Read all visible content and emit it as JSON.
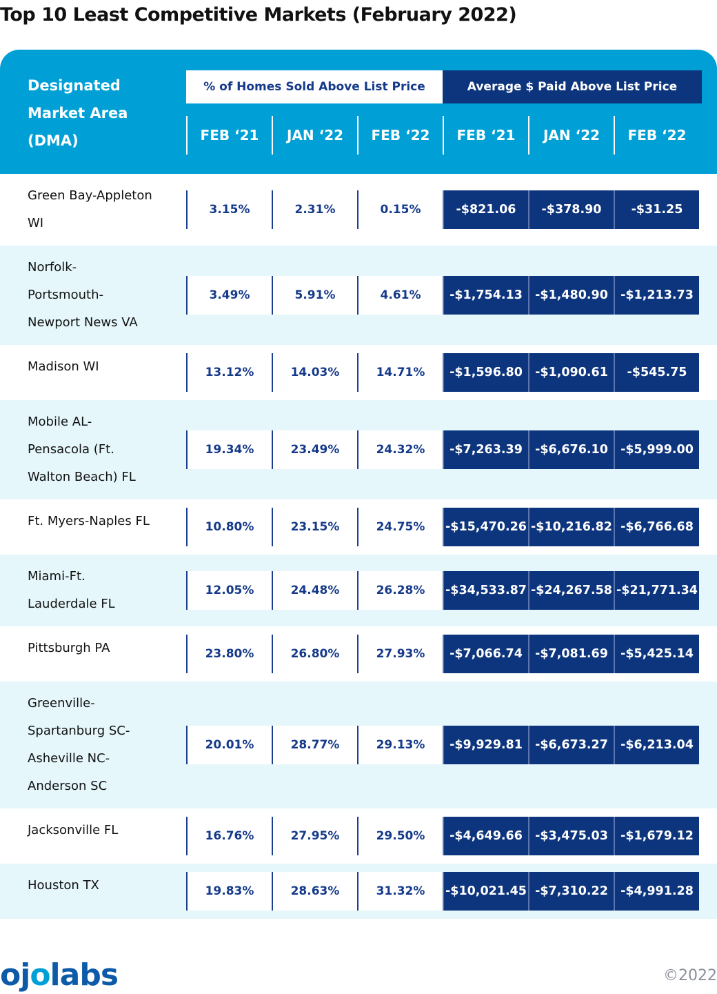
{
  "title": "Top 10 Least Competitive Markets (February 2022)",
  "chart_data": {
    "type": "table",
    "row_header": "Designated Market Area (DMA)",
    "column_groups": [
      {
        "name": "% of Homes Sold Above List Price",
        "columns": [
          "FEB ‘21",
          "JAN ‘22",
          "FEB ‘22"
        ]
      },
      {
        "name": "Average $ Paid Above List Price",
        "columns": [
          "FEB ‘21",
          "JAN ‘22",
          "FEB ‘22"
        ]
      }
    ],
    "rows": [
      {
        "dma": "Green Bay-Appleton WI",
        "pct": [
          "3.15%",
          "2.31%",
          "0.15%"
        ],
        "usd": [
          "-$821.06",
          "-$378.90",
          "-$31.25"
        ]
      },
      {
        "dma": "Norfolk-Portsmouth-Newport News VA",
        "pct": [
          "3.49%",
          "5.91%",
          "4.61%"
        ],
        "usd": [
          "-$1,754.13",
          "-$1,480.90",
          "-$1,213.73"
        ]
      },
      {
        "dma": "Madison WI",
        "pct": [
          "13.12%",
          "14.03%",
          "14.71%"
        ],
        "usd": [
          "-$1,596.80",
          "-$1,090.61",
          "-$545.75"
        ]
      },
      {
        "dma": "Mobile AL-Pensacola (Ft. Walton Beach) FL",
        "pct": [
          "19.34%",
          "23.49%",
          "24.32%"
        ],
        "usd": [
          "-$7,263.39",
          "-$6,676.10",
          "-$5,999.00"
        ]
      },
      {
        "dma": "Ft. Myers-Naples FL",
        "pct": [
          "10.80%",
          "23.15%",
          "24.75%"
        ],
        "usd": [
          "-$15,470.26",
          "-$10,216.82",
          "-$6,766.68"
        ]
      },
      {
        "dma": "Miami-Ft. Lauderdale FL",
        "pct": [
          "12.05%",
          "24.48%",
          "26.28%"
        ],
        "usd": [
          "-$34,533.87",
          "-$24,267.58",
          "-$21,771.34"
        ]
      },
      {
        "dma": "Pittsburgh PA",
        "pct": [
          "23.80%",
          "26.80%",
          "27.93%"
        ],
        "usd": [
          "-$7,066.74",
          "-$7,081.69",
          "-$5,425.14"
        ]
      },
      {
        "dma": "Greenville-Spartanburg SC-Asheville NC-Anderson SC",
        "pct": [
          "20.01%",
          "28.77%",
          "29.13%"
        ],
        "usd": [
          "-$9,929.81",
          "-$6,673.27",
          "-$6,213.04"
        ]
      },
      {
        "dma": "Jacksonville FL",
        "pct": [
          "16.76%",
          "27.95%",
          "29.50%"
        ],
        "usd": [
          "-$4,649.66",
          "-$3,475.03",
          "-$1,679.12"
        ]
      },
      {
        "dma": "Houston TX",
        "pct": [
          "19.83%",
          "28.63%",
          "31.32%"
        ],
        "usd": [
          "-$10,021.45",
          "-$7,310.22",
          "-$4,991.28"
        ]
      }
    ]
  },
  "logo": {
    "part1": "oj",
    "part2": "o",
    "part3": "labs"
  },
  "copyright": "©2022",
  "colors": {
    "header_blue": "#00a0d6",
    "navy": "#0d357e",
    "row_shade": "#e5f7fb",
    "pct_text": "#153a8a"
  }
}
